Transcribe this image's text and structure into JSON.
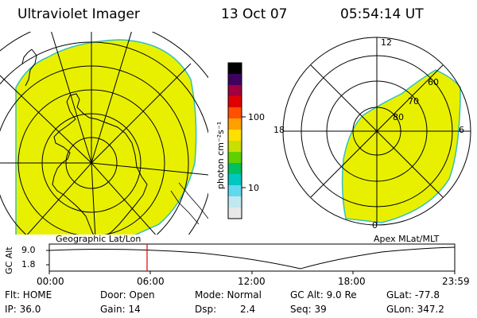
{
  "header": {
    "title": "Ultraviolet Imager",
    "date": "13 Oct 07",
    "time": "05:54:14 UT"
  },
  "left_panel": {
    "label": "Geographic Lat/Lon"
  },
  "right_panel": {
    "label": "Apex MLat/MLT",
    "mlt_labels": [
      "12",
      "18",
      "6",
      "0"
    ],
    "mlat_labels": [
      "60",
      "70",
      "80"
    ]
  },
  "colorbar": {
    "label": "photon cm⁻²s⁻¹",
    "ticks": [
      "100",
      "10"
    ],
    "colors": [
      "#ffffff",
      "#d0d0d0",
      "#80e0ff",
      "#00c8c8",
      "#00c080",
      "#40d000",
      "#c0e000",
      "#ffe000",
      "#ff9000",
      "#ff4000",
      "#e00000",
      "#c00060",
      "#800080",
      "#400060",
      "#000000"
    ],
    "fill_color": "#e8f000"
  },
  "timeline": {
    "axis_label": "GC Alt",
    "y_ticks": [
      "9.0",
      "1.8"
    ],
    "x_ticks": [
      "00:00",
      "06:00",
      "12:00",
      "18:00",
      "23:59"
    ],
    "marker_time": "05:54"
  },
  "info": {
    "flt": "Flt: HOME",
    "ip": "IP: 36.0",
    "door": "Door: Open",
    "gain": "Gain: 14",
    "mode": "Mode: Normal",
    "dsp_label": "Dsp:",
    "dsp_value": "2.4",
    "gcalt": "GC Alt: 9.0 Re",
    "seq": "Seq: 39",
    "glat": "GLat: -77.8",
    "glon": "GLon: 347.2"
  }
}
